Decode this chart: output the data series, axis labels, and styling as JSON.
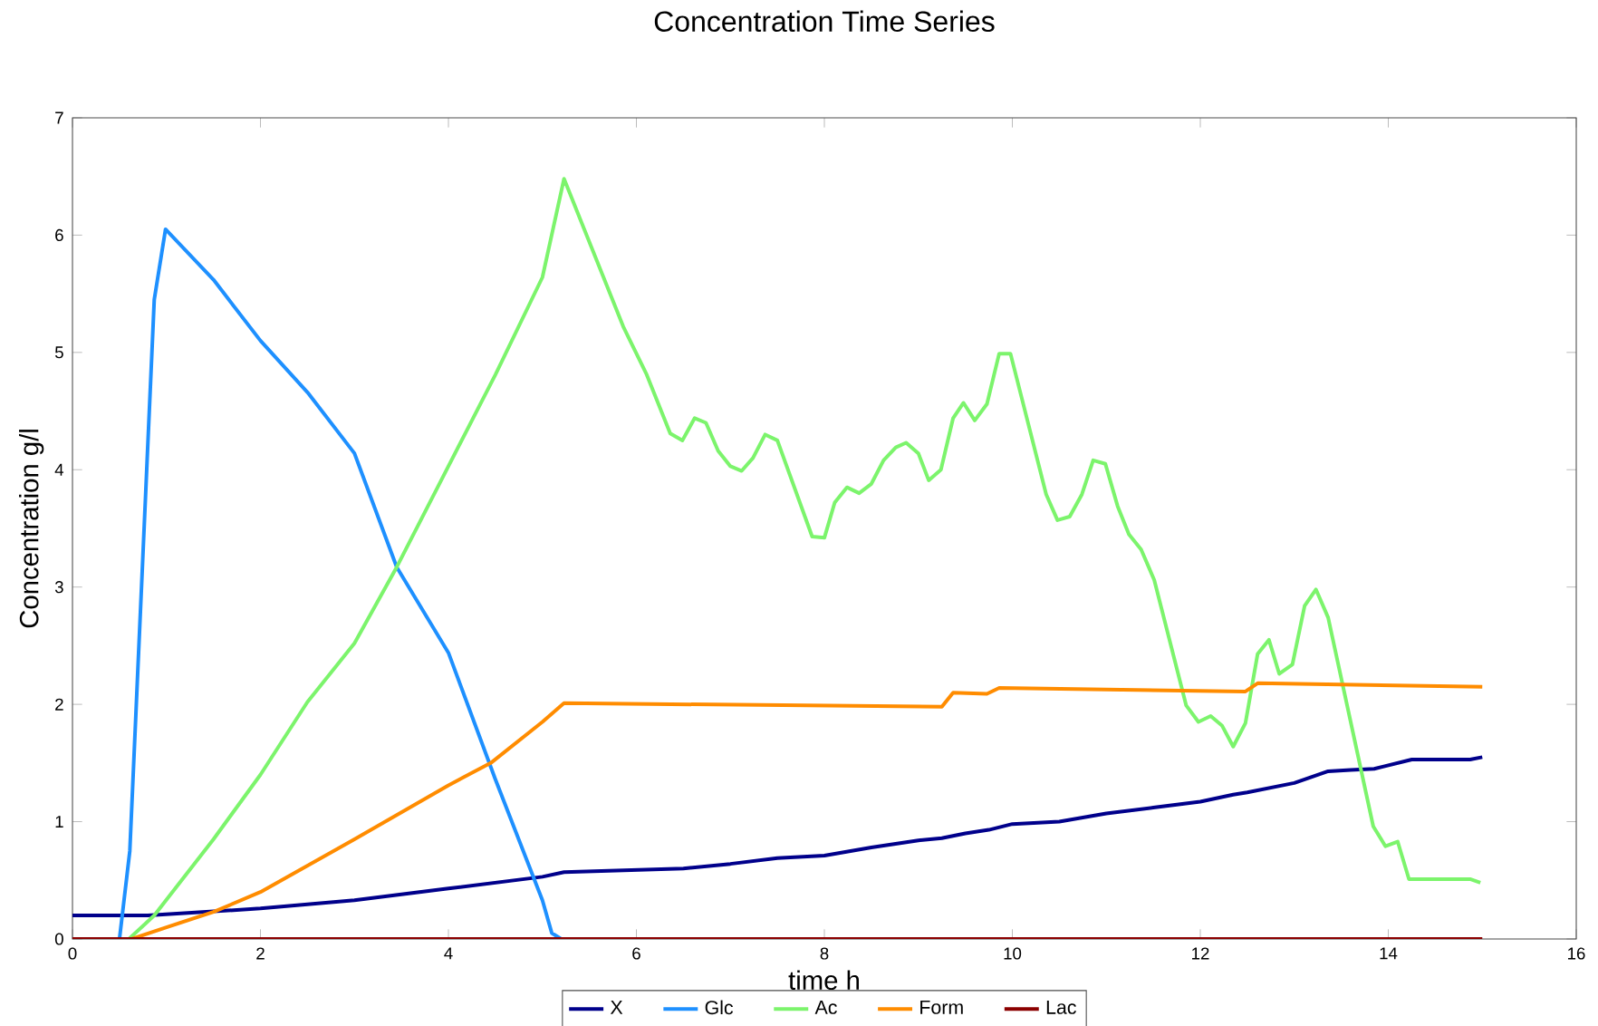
{
  "chart_data": {
    "type": "line",
    "title": "Concentration Time Series",
    "xlabel": "time h",
    "ylabel": "Concentration g/l",
    "xlim": [
      0,
      16
    ],
    "ylim": [
      0,
      7
    ],
    "xticks": [
      0,
      2,
      4,
      6,
      8,
      10,
      12,
      14,
      16
    ],
    "yticks": [
      0,
      1,
      2,
      3,
      4,
      5,
      6,
      7
    ],
    "grid": false,
    "legend": "bottom",
    "marker": "none",
    "line_style": "solid",
    "series": [
      {
        "name": "X",
        "color": "#00008b",
        "x": [
          0,
          0.8,
          2,
          3,
          4,
          5,
          5.23,
          6.5,
          7,
          7.5,
          8,
          8.5,
          9,
          9.25,
          9.5,
          9.75,
          10,
          10.5,
          11,
          11.5,
          12,
          12.35,
          12.5,
          13,
          13.36,
          13.6,
          13.85,
          14.25,
          14.87,
          15
        ],
        "values": [
          0.2,
          0.2,
          0.26,
          0.33,
          0.43,
          0.53,
          0.57,
          0.6,
          0.64,
          0.69,
          0.71,
          0.78,
          0.84,
          0.86,
          0.9,
          0.93,
          0.98,
          1.0,
          1.07,
          1.12,
          1.17,
          1.23,
          1.25,
          1.33,
          1.43,
          1.44,
          1.45,
          1.53,
          1.53,
          1.55
        ]
      },
      {
        "name": "Glc",
        "color": "#1e90ff",
        "x": [
          0.5,
          0.61,
          0.87,
          0.99,
          1.5,
          2,
          2.5,
          3,
          3.45,
          4,
          4.5,
          5,
          5.1,
          5.2
        ],
        "values": [
          0,
          0.75,
          5.45,
          6.05,
          5.62,
          5.1,
          4.66,
          4.14,
          3.17,
          2.44,
          1.36,
          0.33,
          0.05,
          0
        ]
      },
      {
        "name": "Ac",
        "color": "#7cf46c",
        "x": [
          0.6,
          0.87,
          1.5,
          2,
          2.5,
          3,
          3.45,
          4,
          4.5,
          5,
          5.23,
          5.86,
          6.11,
          6.36,
          6.49,
          6.62,
          6.74,
          6.87,
          7.0,
          7.12,
          7.24,
          7.37,
          7.5,
          7.87,
          8.0,
          8.11,
          8.24,
          8.37,
          8.5,
          8.63,
          8.76,
          8.87,
          9.0,
          9.11,
          9.24,
          9.37,
          9.48,
          9.6,
          9.73,
          9.86,
          9.98,
          10.36,
          10.48,
          10.61,
          10.74,
          10.86,
          10.99,
          11.12,
          11.24,
          11.37,
          11.51,
          11.85,
          11.98,
          12.11,
          12.23,
          12.35,
          12.48,
          12.61,
          12.73,
          12.84,
          12.98,
          13.11,
          13.23,
          13.36,
          13.84,
          13.97,
          14.1,
          14.22,
          14.87,
          14.98
        ],
        "values": [
          0,
          0.2,
          0.85,
          1.4,
          2.02,
          2.52,
          3.17,
          4.03,
          4.81,
          5.64,
          6.48,
          5.22,
          4.81,
          4.31,
          4.25,
          4.44,
          4.4,
          4.16,
          4.03,
          3.99,
          4.1,
          4.3,
          4.25,
          3.43,
          3.42,
          3.72,
          3.85,
          3.8,
          3.88,
          4.08,
          4.19,
          4.23,
          4.14,
          3.91,
          4.0,
          4.44,
          4.57,
          4.42,
          4.56,
          4.99,
          4.99,
          3.79,
          3.57,
          3.6,
          3.79,
          4.08,
          4.05,
          3.69,
          3.45,
          3.32,
          3.06,
          1.99,
          1.85,
          1.9,
          1.82,
          1.64,
          1.84,
          2.43,
          2.55,
          2.26,
          2.34,
          2.84,
          2.98,
          2.74,
          0.96,
          0.79,
          0.83,
          0.51,
          0.51,
          0.48
        ]
      },
      {
        "name": "Form",
        "color": "#ff8c00",
        "x": [
          0.63,
          1,
          1.5,
          2,
          3,
          4,
          4.45,
          5,
          5.23,
          9.25,
          9.37,
          9.73,
          9.86,
          12.48,
          12.61,
          15
        ],
        "values": [
          0,
          0.1,
          0.23,
          0.4,
          0.85,
          1.31,
          1.5,
          1.85,
          2.01,
          1.98,
          2.1,
          2.09,
          2.14,
          2.11,
          2.18,
          2.15
        ]
      },
      {
        "name": "Lac",
        "color": "#8b0000",
        "x": [
          0,
          15
        ],
        "values": [
          0,
          0
        ]
      }
    ]
  }
}
